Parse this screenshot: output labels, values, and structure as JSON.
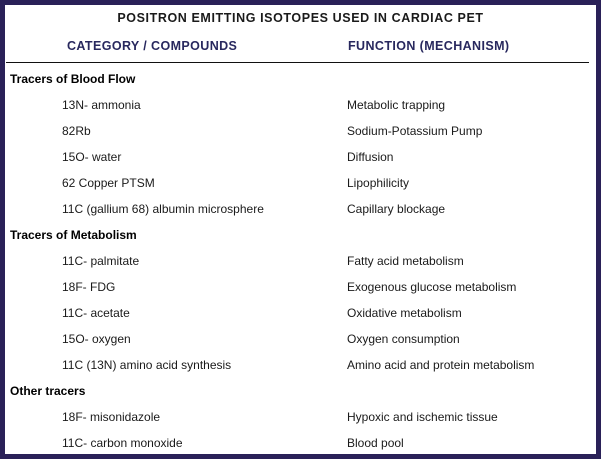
{
  "title": "POSITRON EMITTING ISOTOPES USED IN CARDIAC PET",
  "table": {
    "columns": {
      "category": "CATEGORY / COMPOUNDS",
      "function": "FUNCTION (MECHANISM)"
    },
    "sections": [
      {
        "name": "Tracers of Blood Flow",
        "rows": [
          {
            "compound": "13N- ammonia",
            "function": "Metabolic trapping"
          },
          {
            "compound": "82Rb",
            "function": "Sodium-Potassium Pump"
          },
          {
            "compound": "15O- water",
            "function": "Diffusion"
          },
          {
            "compound": "62 Copper PTSM",
            "function": "Lipophilicity"
          },
          {
            "compound": "11C (gallium 68) albumin microsphere",
            "function": "Capillary blockage"
          }
        ]
      },
      {
        "name": "Tracers of Metabolism",
        "rows": [
          {
            "compound": "11C- palmitate",
            "function": "Fatty acid metabolism"
          },
          {
            "compound": "18F- FDG",
            "function": "Exogenous glucose metabolism"
          },
          {
            "compound": "11C- acetate",
            "function": "Oxidative metabolism"
          },
          {
            "compound": "15O- oxygen",
            "function": "Oxygen consumption"
          },
          {
            "compound": "11C (13N) amino acid synthesis",
            "function": "Amino acid and protein metabolism"
          }
        ]
      },
      {
        "name": "Other tracers",
        "rows": [
          {
            "compound": "18F- misonidazole",
            "function": "Hypoxic and ischemic tissue"
          },
          {
            "compound": "11C- carbon monoxide",
            "function": "Blood pool"
          }
        ]
      }
    ]
  },
  "colors": {
    "border": "#2a2158",
    "heading_text": "#28285e",
    "body_text": "#1a1a1a",
    "divider": "#111111",
    "background": "#ffffff"
  }
}
